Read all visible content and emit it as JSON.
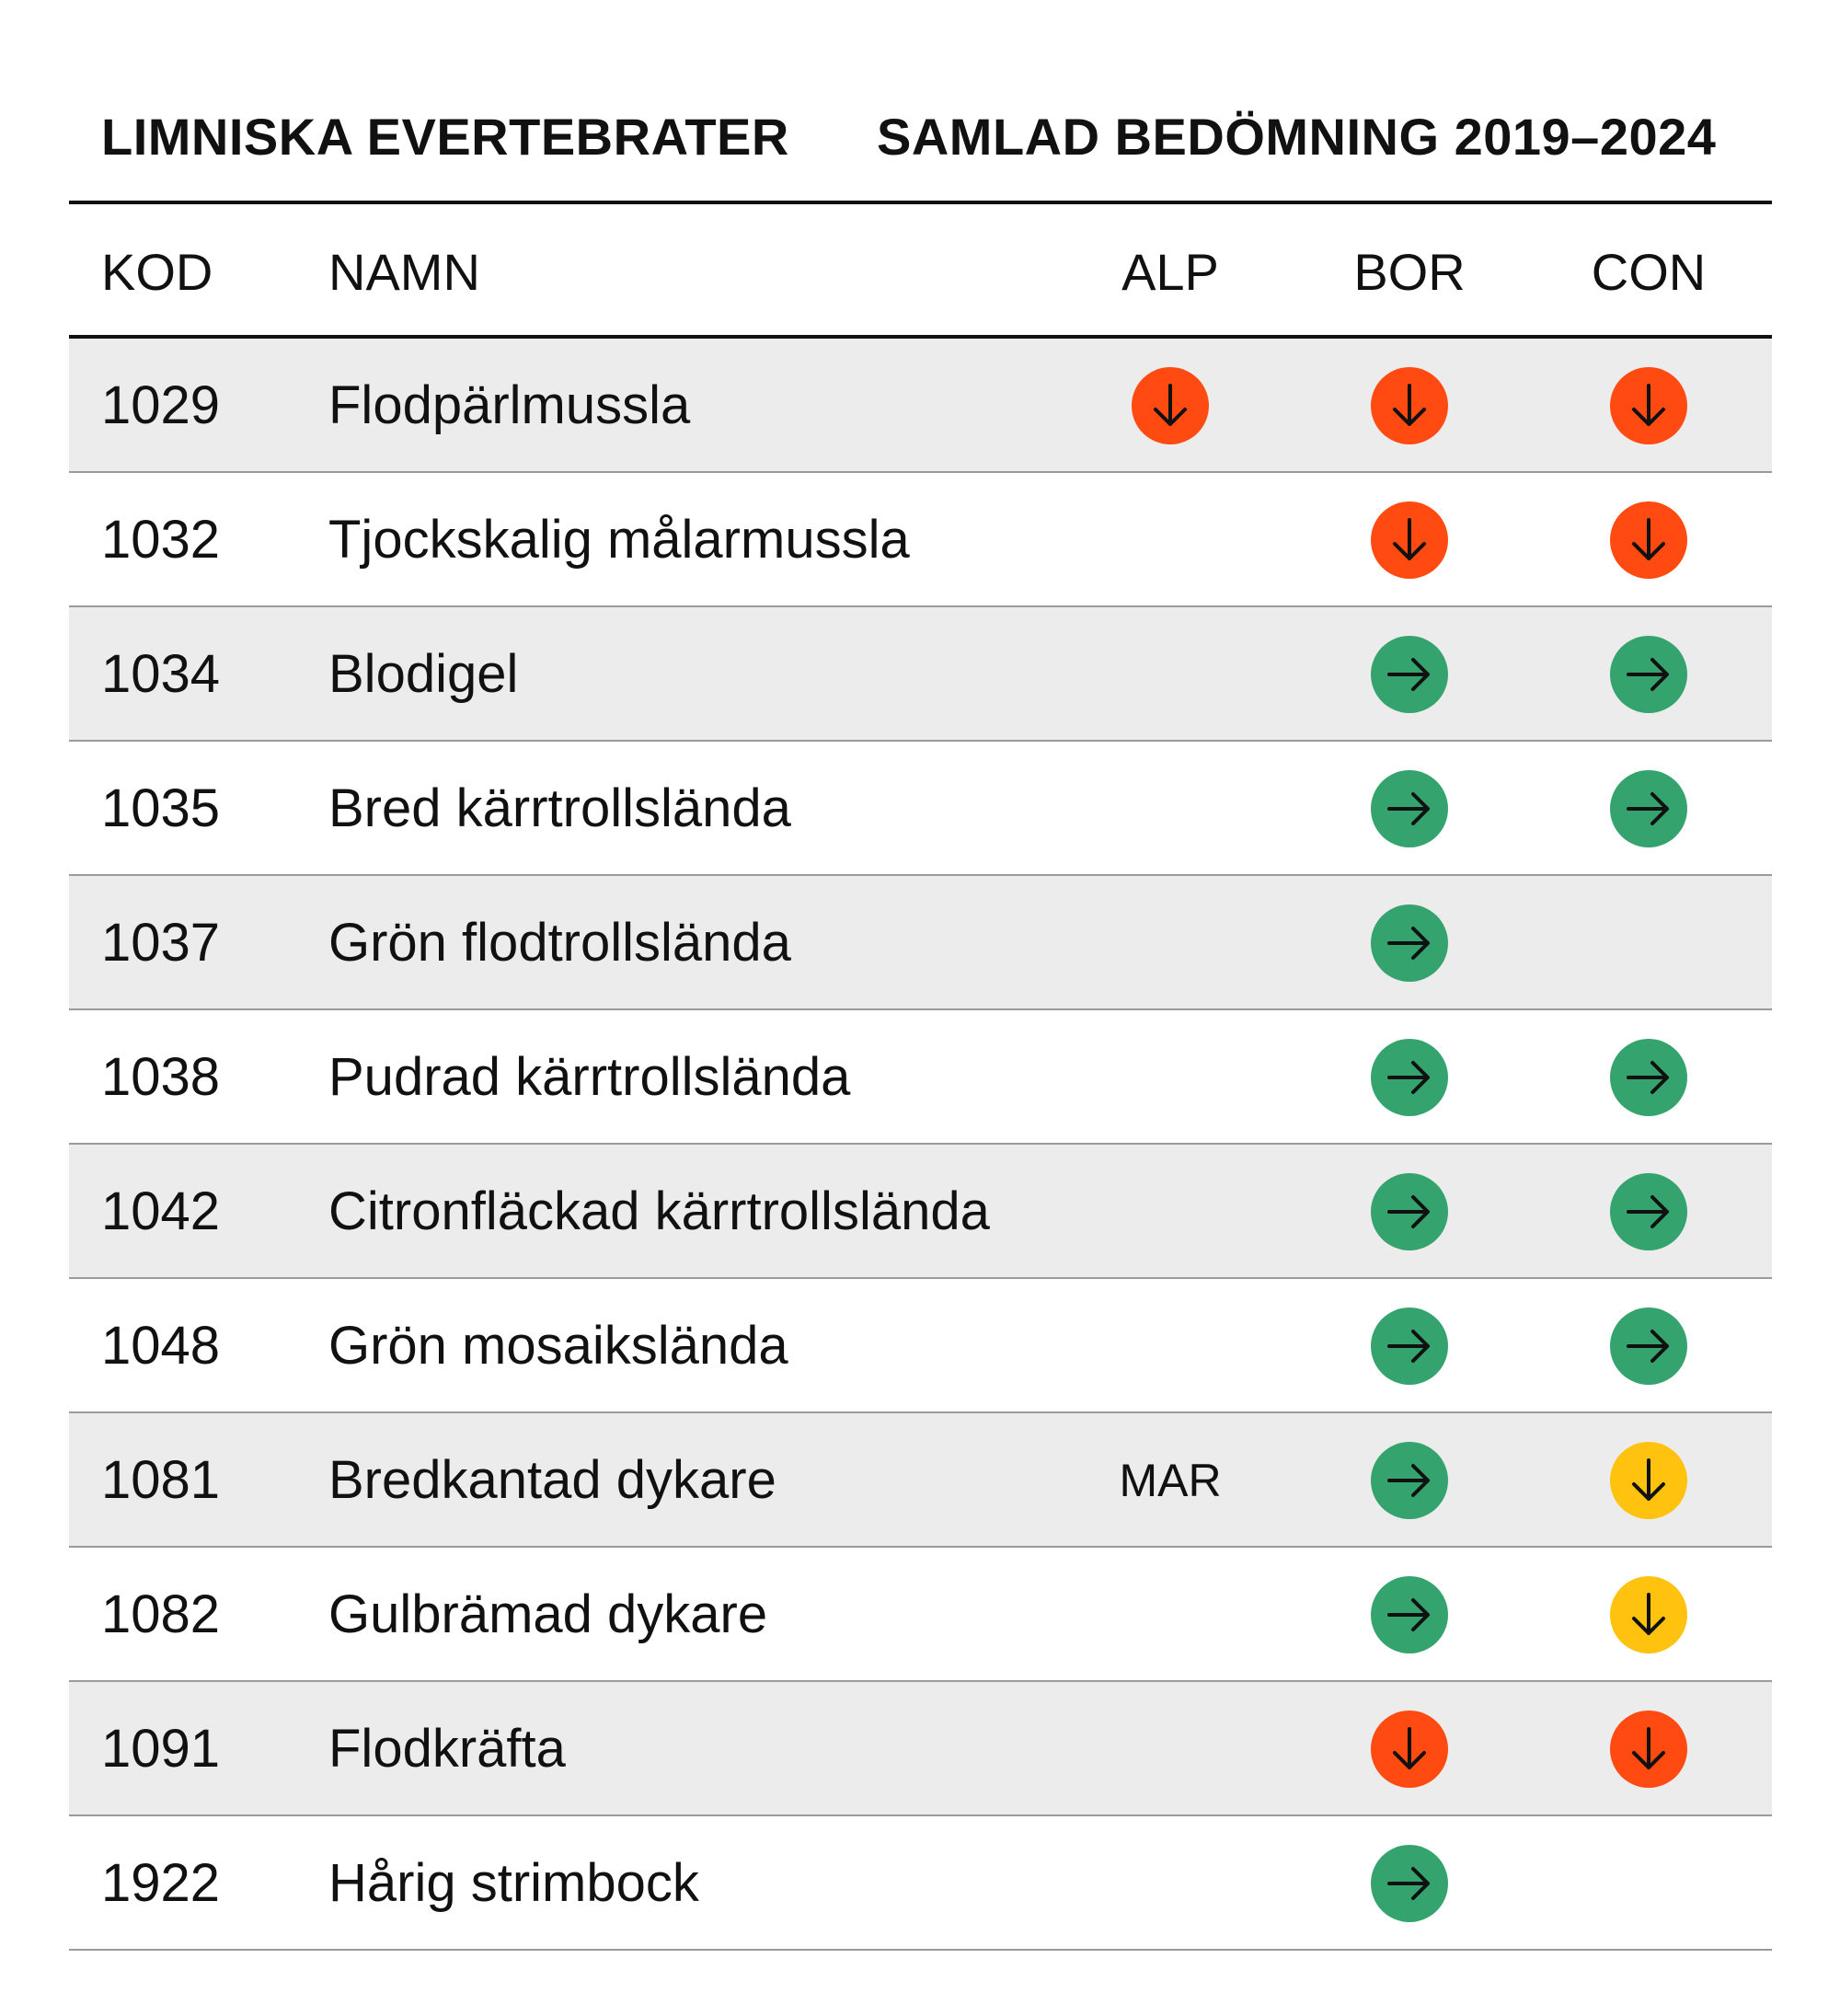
{
  "header": {
    "title_left": "LIMNISKA EVERTEBRATER",
    "title_right": "SAMLAD BEDÖMNING 2019–2024"
  },
  "columns": {
    "kod": "KOD",
    "namn": "NAMN",
    "alp": "ALP",
    "bor": "BOR",
    "con": "CON"
  },
  "colors": {
    "red": "#ff4a12",
    "green": "#34a36e",
    "yellow": "#ffc20e",
    "row_shade": "#ececec",
    "arrow": "#111111"
  },
  "legend_icons": {
    "down": "arrow-down-icon",
    "right": "arrow-right-icon"
  },
  "rows": [
    {
      "kod": "1029",
      "namn": "Flodpärlmussla",
      "alp": {
        "status": "red",
        "dir": "down"
      },
      "bor": {
        "status": "red",
        "dir": "down"
      },
      "con": {
        "status": "red",
        "dir": "down"
      }
    },
    {
      "kod": "1032",
      "namn": "Tjockskalig målarmussla",
      "alp": null,
      "bor": {
        "status": "red",
        "dir": "down"
      },
      "con": {
        "status": "red",
        "dir": "down"
      }
    },
    {
      "kod": "1034",
      "namn": "Blodigel",
      "alp": null,
      "bor": {
        "status": "green",
        "dir": "right"
      },
      "con": {
        "status": "green",
        "dir": "right"
      }
    },
    {
      "kod": "1035",
      "namn": "Bred kärrtrollslända",
      "alp": null,
      "bor": {
        "status": "green",
        "dir": "right"
      },
      "con": {
        "status": "green",
        "dir": "right"
      }
    },
    {
      "kod": "1037",
      "namn": "Grön flodtrollslända",
      "alp": null,
      "bor": {
        "status": "green",
        "dir": "right"
      },
      "con": null
    },
    {
      "kod": "1038",
      "namn": "Pudrad kärrtrollslända",
      "alp": null,
      "bor": {
        "status": "green",
        "dir": "right"
      },
      "con": {
        "status": "green",
        "dir": "right"
      }
    },
    {
      "kod": "1042",
      "namn": "Citronfläckad kärrtrollslända",
      "alp": null,
      "bor": {
        "status": "green",
        "dir": "right"
      },
      "con": {
        "status": "green",
        "dir": "right"
      }
    },
    {
      "kod": "1048",
      "namn": "Grön mosaikslända",
      "alp": null,
      "bor": {
        "status": "green",
        "dir": "right"
      },
      "con": {
        "status": "green",
        "dir": "right"
      }
    },
    {
      "kod": "1081",
      "namn": "Bredkantad dykare",
      "alp": {
        "text": "MAR"
      },
      "bor": {
        "status": "green",
        "dir": "right"
      },
      "con": {
        "status": "yellow",
        "dir": "down"
      }
    },
    {
      "kod": "1082",
      "namn": "Gulbrämad dykare",
      "alp": null,
      "bor": {
        "status": "green",
        "dir": "right"
      },
      "con": {
        "status": "yellow",
        "dir": "down"
      }
    },
    {
      "kod": "1091",
      "namn": "Flodkräfta",
      "alp": null,
      "bor": {
        "status": "red",
        "dir": "down"
      },
      "con": {
        "status": "red",
        "dir": "down"
      }
    },
    {
      "kod": "1922",
      "namn": "Hårig strimbock",
      "alp": null,
      "bor": {
        "status": "green",
        "dir": "right"
      },
      "con": null
    }
  ]
}
